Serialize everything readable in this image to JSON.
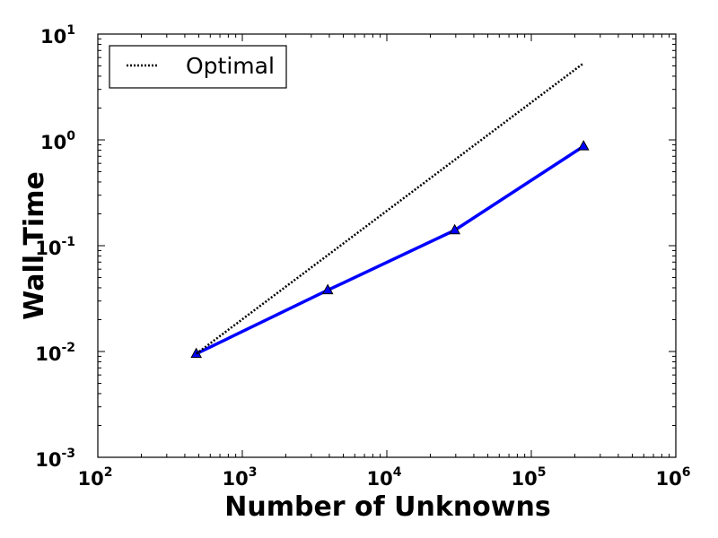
{
  "chart_data": {
    "type": "line",
    "title": "",
    "xlabel": "Number of Unknowns",
    "ylabel": "Wall Time",
    "xscale": "log",
    "yscale": "log",
    "xlim": [
      100,
      1000000
    ],
    "ylim": [
      0.001,
      10
    ],
    "x_ticks": [
      {
        "base": "10",
        "exp": "2"
      },
      {
        "base": "10",
        "exp": "3"
      },
      {
        "base": "10",
        "exp": "4"
      },
      {
        "base": "10",
        "exp": "5"
      },
      {
        "base": "10",
        "exp": "6"
      }
    ],
    "y_ticks": [
      {
        "base": "10",
        "exp": "-3"
      },
      {
        "base": "10",
        "exp": "-2"
      },
      {
        "base": "10",
        "exp": "-1"
      },
      {
        "base": "10",
        "exp": "0"
      },
      {
        "base": "10",
        "exp": "1"
      }
    ],
    "legend": {
      "placement": "upper-left",
      "entries": [
        "Optimal"
      ]
    },
    "series": [
      {
        "color": "#0000ff",
        "style": "solid",
        "marker": "triangle",
        "x": [
          480,
          3900,
          29500,
          230000
        ],
        "y": [
          0.0095,
          0.038,
          0.14,
          0.87
        ]
      },
      {
        "name": "Optimal",
        "color": "#000000",
        "style": "dotted",
        "marker": "none",
        "x": [
          480,
          230000
        ],
        "y": [
          0.0095,
          5.3
        ]
      }
    ]
  }
}
